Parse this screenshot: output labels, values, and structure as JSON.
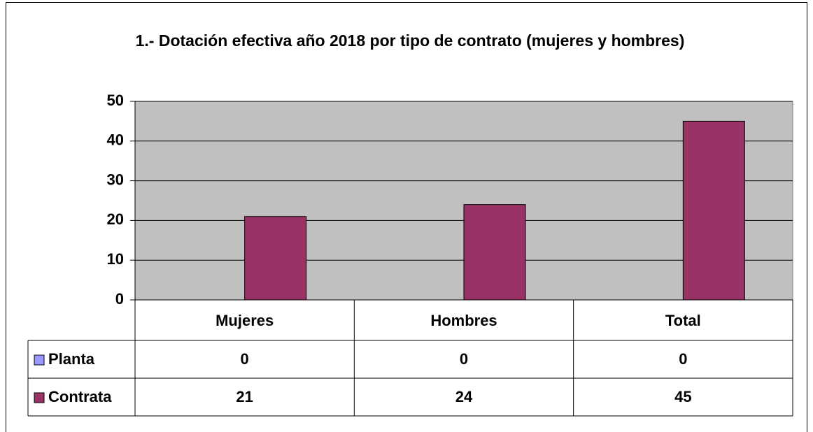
{
  "chart_data": {
    "type": "bar",
    "title": "1.- Dotación efectiva año 2018 por tipo de contrato (mujeres y hombres)",
    "categories": [
      "Mujeres",
      "Hombres",
      "Total"
    ],
    "series": [
      {
        "name": "Planta",
        "color": "#9999ff",
        "values": [
          0,
          0,
          0
        ]
      },
      {
        "name": "Contrata",
        "color": "#993366",
        "values": [
          21,
          24,
          45
        ]
      }
    ],
    "ylim": [
      0,
      50
    ],
    "yticks": [
      0,
      10,
      20,
      30,
      40,
      50
    ],
    "grid": true
  }
}
